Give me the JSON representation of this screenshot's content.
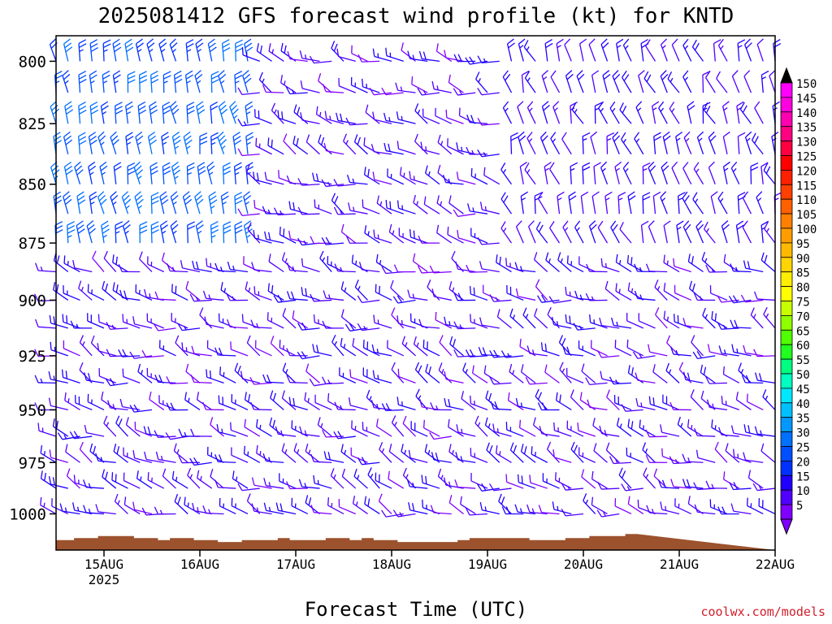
{
  "chart_data": {
    "type": "wind-barb-time-height",
    "title": "2025081412 GFS forecast wind profile (kt) for KNTD",
    "xlabel": "Forecast Time (UTC)",
    "ylabel": "",
    "x_ticks": [
      {
        "label": "15AUG",
        "sub": "2025"
      },
      {
        "label": "16AUG",
        "sub": ""
      },
      {
        "label": "17AUG",
        "sub": ""
      },
      {
        "label": "18AUG",
        "sub": ""
      },
      {
        "label": "19AUG",
        "sub": ""
      },
      {
        "label": "20AUG",
        "sub": ""
      },
      {
        "label": "21AUG",
        "sub": ""
      },
      {
        "label": "22AUG",
        "sub": ""
      }
    ],
    "x_range": [
      "2025-08-14T12:00Z",
      "2025-08-22T00:00Z"
    ],
    "x_tick_times": [
      "2025-08-15T00:00Z",
      "2025-08-16T00:00Z",
      "2025-08-17T00:00Z",
      "2025-08-18T00:00Z",
      "2025-08-19T00:00Z",
      "2025-08-20T00:00Z",
      "2025-08-21T00:00Z",
      "2025-08-22T00:00Z"
    ],
    "y_ticks": [
      "800",
      "825",
      "850",
      "875",
      "900",
      "925",
      "950",
      "975",
      "1000"
    ],
    "y_tick_values": [
      800,
      825,
      850,
      875,
      900,
      925,
      950,
      975,
      1000
    ],
    "y_range_hpa": [
      790,
      1018
    ],
    "y_scale": "log-pressure",
    "pressure_levels_hpa": [
      800,
      812.5,
      825,
      837.5,
      850,
      862.5,
      875,
      887.5,
      900,
      912.5,
      925,
      937.5,
      950,
      962.5,
      975,
      987.5,
      1000,
      1012.5
    ],
    "time_step_hours": 3,
    "surface_pressure_hpa": [
      1013,
      1013,
      1012,
      1012,
      1011,
      1011,
      1011,
      1012,
      1012,
      1013,
      1012,
      1012,
      1013,
      1013,
      1014,
      1014,
      1013,
      1013,
      1013,
      1012,
      1013,
      1013,
      1013,
      1012,
      1012,
      1013,
      1012,
      1013,
      1013,
      1014,
      1014,
      1014,
      1014,
      1014,
      1013,
      1012,
      1012,
      1012,
      1012,
      1012,
      1013,
      1013,
      1013,
      1012,
      1012,
      1011,
      1011,
      1011,
      1010
    ],
    "wind_summary": {
      "low_levels": "mostly westerly to west-northwesterly 10-20 kt",
      "upper_levels_early": "north-northwesterly 25-35 kt at 800-875 hPa on 15-16 Aug",
      "upper_levels_late": "northwesterly to northerly 10-20 kt after 19 Aug"
    },
    "colorbar": {
      "labels": [
        "150",
        "145",
        "140",
        "135",
        "130",
        "125",
        "120",
        "115",
        "110",
        "105",
        "100",
        "95",
        "90",
        "85",
        "80",
        "75",
        "70",
        "65",
        "60",
        "55",
        "50",
        "45",
        "40",
        "35",
        "30",
        "25",
        "20",
        "15",
        "10",
        "5"
      ],
      "colors": [
        "#ff00ff",
        "#ff00e0",
        "#ff00b0",
        "#ff0080",
        "#ff0040",
        "#ff0000",
        "#ff2000",
        "#ff4000",
        "#ff6000",
        "#ff8000",
        "#ff9d00",
        "#ffb800",
        "#ffd400",
        "#ffee00",
        "#ffff00",
        "#c8ff00",
        "#90ff00",
        "#50ff00",
        "#20ff20",
        "#00ff80",
        "#00ffc0",
        "#00e8ff",
        "#00c0ff",
        "#0098ff",
        "#0070ff",
        "#0050ff",
        "#0030ff",
        "#2000ff",
        "#5000ff",
        "#8000ff"
      ],
      "top_arrow_color": "#000000",
      "bottom_arrow_color": "#8000ff"
    },
    "colors": {
      "terrain": "#9c522d",
      "frame": "#000000"
    }
  },
  "credit": "coolwx.com/models"
}
